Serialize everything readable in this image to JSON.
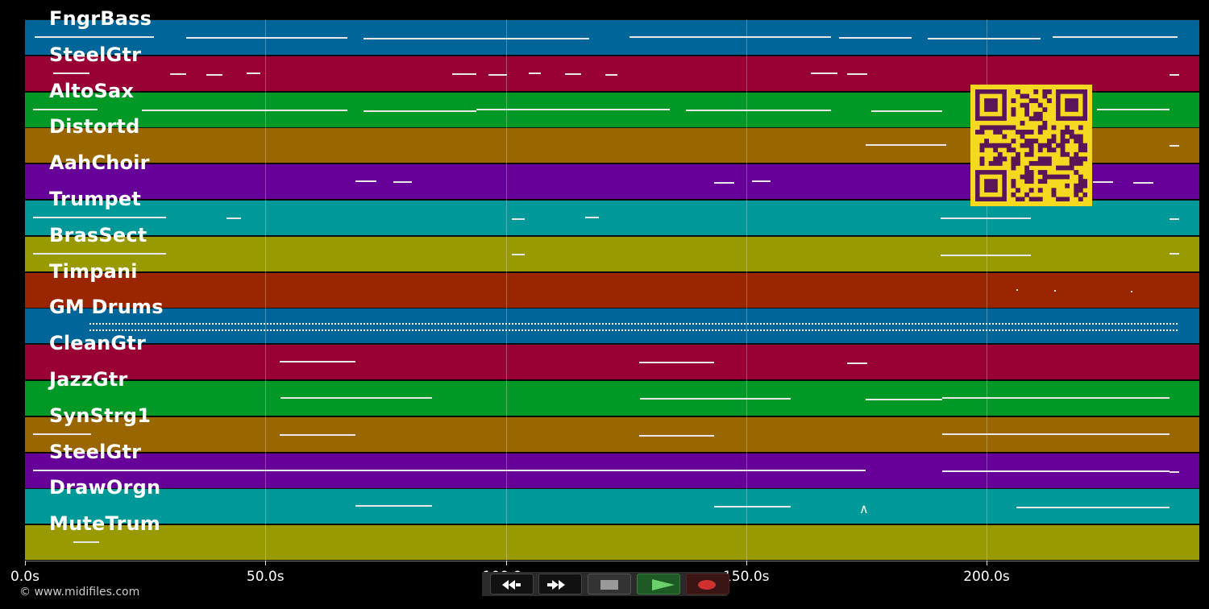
{
  "tracks": [
    {
      "name": "FngrBass",
      "color": "#006699"
    },
    {
      "name": "SteelGtr",
      "color": "#990033"
    },
    {
      "name": "AltoSax",
      "color": "#009926"
    },
    {
      "name": "Distortd",
      "color": "#996600"
    },
    {
      "name": "AahChoir",
      "color": "#660099"
    },
    {
      "name": "Trumpet",
      "color": "#009999"
    },
    {
      "name": "BrasSect",
      "color": "#999900"
    },
    {
      "name": "Timpani",
      "color": "#992600"
    },
    {
      "name": "GM Drums",
      "color": "#006699"
    },
    {
      "name": "CleanGtr",
      "color": "#990033"
    },
    {
      "name": "JazzGtr",
      "color": "#009926"
    },
    {
      "name": "SynStrg1",
      "color": "#996600"
    },
    {
      "name": "SteelGtr",
      "color": "#660099"
    },
    {
      "name": "DrawOrgn",
      "color": "#009999"
    },
    {
      "name": "MuteTrum",
      "color": "#999900"
    }
  ],
  "time_axis": {
    "ticks": [
      "0.0s",
      "50.0s",
      "100.0s",
      "150.0s",
      "200.0s"
    ],
    "tick_seconds": [
      0,
      50,
      100,
      150,
      200
    ]
  },
  "credit": "© www.midifiles.com",
  "transport": {
    "rewind": "rewind-icon",
    "fast_forward": "fast-forward-icon",
    "stop": "stop-icon",
    "play": "play-icon",
    "record": "record-icon"
  },
  "qr_code": {
    "color": "#f5d820",
    "fg": "#5a1458"
  }
}
